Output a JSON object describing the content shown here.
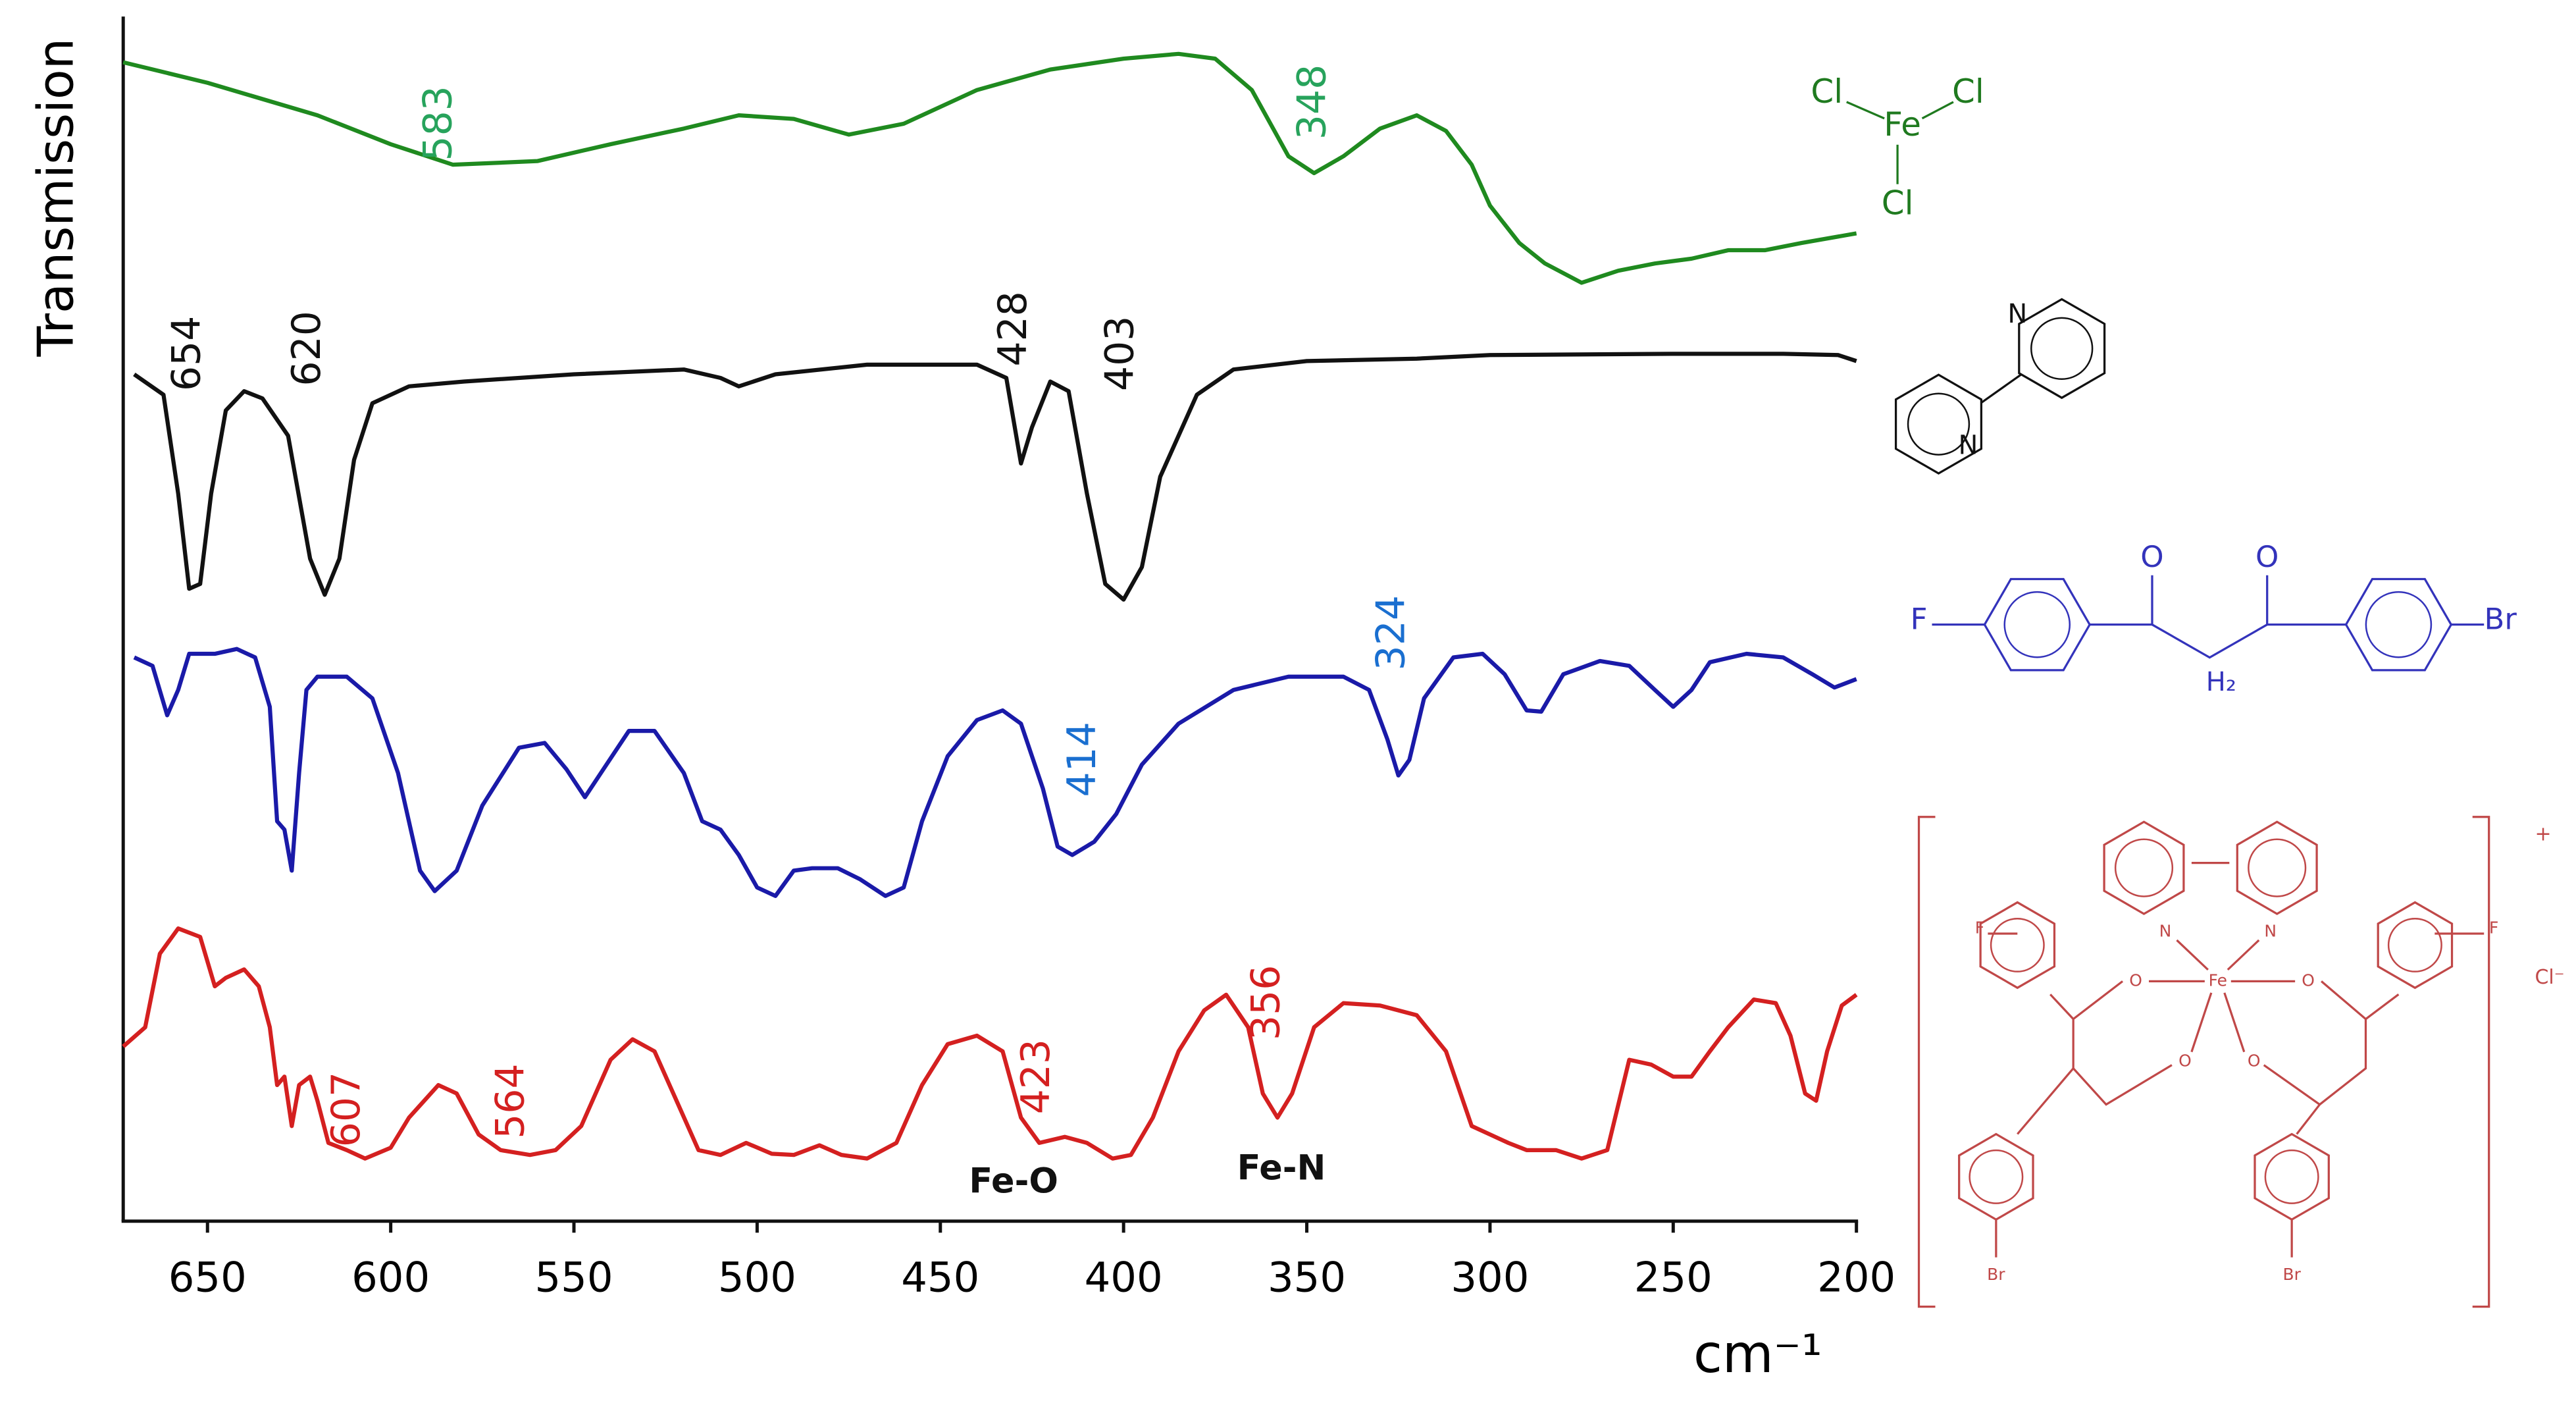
{
  "chart_data": {
    "type": "line",
    "y_label": "Transmission",
    "x_label": "cm⁻¹",
    "xlim": [
      673,
      200
    ],
    "xticks": [
      650,
      600,
      550,
      500,
      450,
      400,
      350,
      300,
      250,
      200
    ],
    "ylim": [
      0,
      100
    ],
    "annotations": [
      "Fe-O",
      "Fe-N"
    ],
    "series": [
      {
        "color": "#1f8a1f",
        "label_color": "#27a35c",
        "peak_labels": [
          "583",
          "348"
        ],
        "x": [
          673,
          650,
          620,
          600,
          583,
          560,
          540,
          520,
          505,
          490,
          475,
          460,
          440,
          420,
          400,
          385,
          375,
          365,
          355,
          348,
          340,
          330,
          320,
          312,
          305,
          300,
          292,
          285,
          275,
          265,
          255,
          245,
          235,
          225,
          215,
          200
        ],
        "values": [
          96.2,
          94.5,
          91.8,
          89.4,
          87.7,
          88.0,
          89.4,
          90.7,
          91.8,
          91.5,
          90.2,
          91.1,
          93.9,
          95.6,
          96.5,
          96.9,
          96.5,
          93.9,
          88.4,
          87.0,
          88.4,
          90.7,
          91.8,
          90.5,
          87.7,
          84.3,
          81.2,
          79.5,
          77.9,
          78.9,
          79.5,
          79.9,
          80.6,
          80.6,
          81.2,
          82.0
        ]
      },
      {
        "color": "#111111",
        "label_color": "#111111",
        "peak_labels": [
          "654",
          "620",
          "428",
          "403"
        ],
        "x": [
          670,
          662,
          658,
          655,
          652,
          649,
          645,
          640,
          635,
          628,
          622,
          618,
          614,
          610,
          605,
          595,
          580,
          550,
          520,
          510,
          505,
          495,
          470,
          440,
          432,
          428,
          425,
          420,
          415,
          410,
          405,
          400,
          395,
          390,
          380,
          370,
          350,
          320,
          300,
          250,
          220,
          205,
          200
        ],
        "values": [
          70.3,
          68.6,
          60.4,
          52.5,
          52.9,
          60.4,
          67.3,
          68.9,
          68.3,
          65.2,
          55.0,
          52.0,
          55.0,
          63.2,
          67.9,
          69.3,
          69.7,
          70.3,
          70.7,
          70.0,
          69.3,
          70.3,
          71.1,
          71.1,
          70.0,
          62.9,
          65.9,
          69.7,
          68.9,
          60.4,
          52.9,
          51.6,
          54.3,
          61.8,
          68.6,
          70.7,
          71.4,
          71.6,
          71.9,
          72.0,
          72.0,
          71.9,
          71.4
        ]
      },
      {
        "color": "#1a1aa8",
        "label_color": "#1a6fd0",
        "peak_labels": [
          "324",
          "414"
        ],
        "x": [
          670,
          665,
          661,
          658,
          655,
          648,
          642,
          637,
          633,
          631,
          629,
          627,
          625,
          623,
          620,
          612,
          605,
          598,
          592,
          588,
          582,
          575,
          565,
          558,
          552,
          547,
          542,
          535,
          528,
          520,
          515,
          510,
          505,
          500,
          495,
          490,
          485,
          478,
          472,
          465,
          460,
          455,
          448,
          440,
          433,
          428,
          422,
          418,
          414,
          408,
          402,
          395,
          385,
          370,
          355,
          340,
          333,
          328,
          325,
          322,
          318,
          310,
          302,
          296,
          290,
          286,
          280,
          270,
          262,
          255,
          250,
          245,
          240,
          230,
          220,
          212,
          206,
          200
        ],
        "values": [
          46.8,
          46.1,
          42.0,
          44.1,
          47.1,
          47.1,
          47.5,
          46.8,
          42.7,
          33.2,
          32.5,
          29.1,
          37.2,
          44.1,
          45.2,
          45.2,
          43.4,
          37.2,
          29.1,
          27.4,
          29.1,
          34.5,
          39.3,
          39.7,
          37.5,
          35.2,
          37.5,
          40.7,
          40.7,
          37.2,
          33.2,
          32.5,
          30.4,
          27.7,
          27.0,
          29.1,
          29.3,
          29.3,
          28.4,
          27.0,
          27.7,
          33.2,
          38.6,
          41.6,
          42.4,
          41.3,
          35.9,
          31.1,
          30.4,
          31.5,
          33.8,
          37.9,
          41.3,
          44.1,
          45.2,
          45.2,
          44.1,
          40.0,
          37.0,
          38.3,
          43.4,
          46.8,
          47.1,
          45.4,
          42.4,
          42.3,
          45.4,
          46.5,
          46.1,
          44.1,
          42.7,
          44.1,
          46.4,
          47.1,
          46.8,
          45.4,
          44.3,
          45.0
        ]
      },
      {
        "color": "#d42020",
        "label_color": "#d42020",
        "peak_labels": [
          "607",
          "564",
          "423",
          "356"
        ],
        "x": [
          673,
          667,
          663,
          658,
          652,
          648,
          645,
          640,
          636,
          633,
          631,
          629,
          627,
          625,
          622,
          620,
          617,
          612,
          607,
          600,
          595,
          587,
          582,
          576,
          570,
          562,
          555,
          548,
          540,
          534,
          528,
          522,
          516,
          510,
          503,
          496,
          490,
          483,
          477,
          470,
          462,
          455,
          448,
          440,
          433,
          428,
          423,
          416,
          410,
          403,
          398,
          392,
          385,
          378,
          372,
          366,
          362,
          358,
          354,
          348,
          340,
          330,
          320,
          312,
          305,
          300,
          295,
          290,
          282,
          275,
          268,
          262,
          256,
          250,
          245,
          240,
          235,
          228,
          222,
          218,
          214,
          211,
          208,
          204,
          200
        ],
        "values": [
          14.5,
          16.1,
          22.2,
          24.3,
          23.6,
          19.5,
          20.2,
          20.9,
          19.5,
          16.1,
          11.3,
          12.0,
          7.9,
          11.3,
          12.0,
          10.0,
          6.5,
          5.9,
          5.2,
          6.1,
          8.6,
          11.3,
          10.6,
          7.2,
          5.9,
          5.5,
          5.9,
          7.9,
          13.4,
          15.1,
          14.1,
          10.0,
          5.9,
          5.5,
          6.5,
          5.6,
          5.5,
          6.3,
          5.5,
          5.2,
          6.5,
          11.3,
          14.7,
          15.4,
          14.1,
          8.6,
          6.5,
          7.0,
          6.5,
          5.2,
          5.5,
          8.6,
          14.1,
          17.5,
          18.8,
          16.1,
          10.6,
          8.6,
          10.6,
          16.1,
          18.1,
          17.9,
          17.1,
          14.1,
          7.9,
          7.2,
          6.5,
          5.9,
          5.9,
          5.2,
          5.9,
          13.4,
          13.0,
          12.0,
          12.0,
          14.1,
          16.1,
          18.4,
          18.1,
          15.4,
          10.6,
          10.0,
          14.1,
          17.9,
          18.8
        ]
      }
    ]
  },
  "structures": [
    {
      "color": "#1f7a1f",
      "labels": [
        "Cl",
        "Fe",
        "Cl",
        "Cl"
      ]
    },
    {
      "color": "#111111",
      "labels": [
        "N",
        "N"
      ]
    },
    {
      "color": "#3333bb",
      "labels": [
        "F",
        "O",
        "O",
        "H₂",
        "Br"
      ]
    },
    {
      "color": "#c04848",
      "labels": [
        "F",
        "F",
        "N",
        "N",
        "Fe",
        "O",
        "O",
        "O",
        "O",
        "Br",
        "Br",
        "+",
        "Cl⁻"
      ]
    }
  ]
}
